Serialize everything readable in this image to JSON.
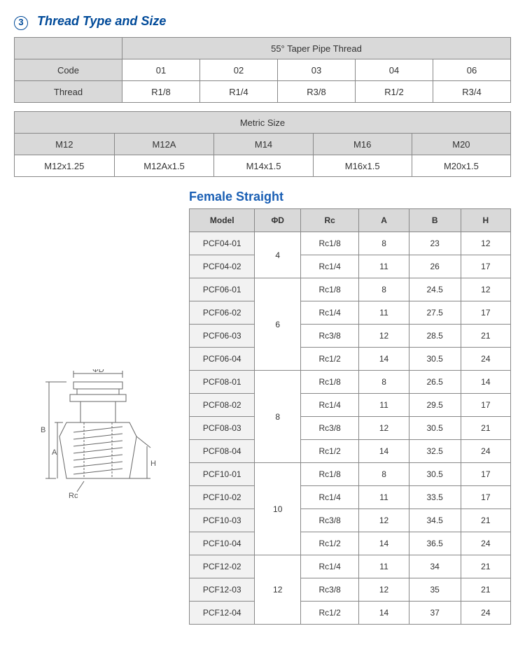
{
  "section": {
    "number": "3",
    "title": "Thread Type and Size"
  },
  "taper": {
    "header": "55° Taper Pipe Thread",
    "row_labels": [
      "Code",
      "Thread"
    ],
    "codes": [
      "01",
      "02",
      "03",
      "04",
      "06"
    ],
    "threads": [
      "R1/8",
      "R1/4",
      "R3/8",
      "R1/2",
      "R3/4"
    ]
  },
  "metric": {
    "header": "Metric Size",
    "row1": [
      "M12",
      "M12A",
      "M14",
      "M16",
      "M20"
    ],
    "row2": [
      "M12x1.25",
      "M12Ax1.5",
      "M14x1.5",
      "M16x1.5",
      "M20x1.5"
    ]
  },
  "female_straight": {
    "title": "Female Straight",
    "columns": [
      "Model",
      "ΦD",
      "Rc",
      "A",
      "B",
      "H"
    ],
    "groups": [
      {
        "d": "4",
        "rows": [
          {
            "model": "PCF04-01",
            "rc": "Rc1/8",
            "a": "8",
            "b": "23",
            "h": "12"
          },
          {
            "model": "PCF04-02",
            "rc": "Rc1/4",
            "a": "11",
            "b": "26",
            "h": "17"
          }
        ]
      },
      {
        "d": "6",
        "rows": [
          {
            "model": "PCF06-01",
            "rc": "Rc1/8",
            "a": "8",
            "b": "24.5",
            "h": "12"
          },
          {
            "model": "PCF06-02",
            "rc": "Rc1/4",
            "a": "11",
            "b": "27.5",
            "h": "17"
          },
          {
            "model": "PCF06-03",
            "rc": "Rc3/8",
            "a": "12",
            "b": "28.5",
            "h": "21"
          },
          {
            "model": "PCF06-04",
            "rc": "Rc1/2",
            "a": "14",
            "b": "30.5",
            "h": "24"
          }
        ]
      },
      {
        "d": "8",
        "rows": [
          {
            "model": "PCF08-01",
            "rc": "Rc1/8",
            "a": "8",
            "b": "26.5",
            "h": "14"
          },
          {
            "model": "PCF08-02",
            "rc": "Rc1/4",
            "a": "11",
            "b": "29.5",
            "h": "17"
          },
          {
            "model": "PCF08-03",
            "rc": "Rc3/8",
            "a": "12",
            "b": "30.5",
            "h": "21"
          },
          {
            "model": "PCF08-04",
            "rc": "Rc1/2",
            "a": "14",
            "b": "32.5",
            "h": "24"
          }
        ]
      },
      {
        "d": "10",
        "rows": [
          {
            "model": "PCF10-01",
            "rc": "Rc1/8",
            "a": "8",
            "b": "30.5",
            "h": "17"
          },
          {
            "model": "PCF10-02",
            "rc": "Rc1/4",
            "a": "11",
            "b": "33.5",
            "h": "17"
          },
          {
            "model": "PCF10-03",
            "rc": "Rc3/8",
            "a": "12",
            "b": "34.5",
            "h": "21"
          },
          {
            "model": "PCF10-04",
            "rc": "Rc1/2",
            "a": "14",
            "b": "36.5",
            "h": "24"
          }
        ]
      },
      {
        "d": "12",
        "rows": [
          {
            "model": "PCF12-02",
            "rc": "Rc1/4",
            "a": "11",
            "b": "34",
            "h": "21"
          },
          {
            "model": "PCF12-03",
            "rc": "Rc3/8",
            "a": "12",
            "b": "35",
            "h": "21"
          },
          {
            "model": "PCF12-04",
            "rc": "Rc1/2",
            "a": "14",
            "b": "37",
            "h": "24"
          }
        ]
      }
    ]
  },
  "diagram": {
    "labels": {
      "phiD": "ΦD",
      "B": "B",
      "A": "A",
      "H": "H",
      "Rc": "Rc"
    },
    "stroke": "#666"
  }
}
